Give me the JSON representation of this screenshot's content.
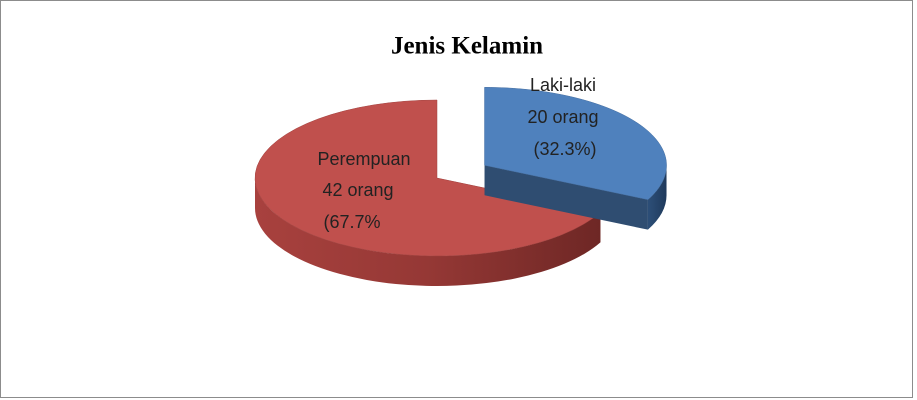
{
  "chart_data": {
    "type": "pie3d",
    "title": "Jenis Kelamin",
    "categories": [
      "Laki-laki",
      "Perempuan"
    ],
    "values": [
      20,
      42
    ],
    "value_labels": [
      "20 orang",
      "42 orang"
    ],
    "percent_labels": [
      "(32.3%)",
      "(67.7%"
    ],
    "colors": [
      "#4f81bd",
      "#c0504d"
    ],
    "exploded": [
      true,
      false
    ]
  }
}
